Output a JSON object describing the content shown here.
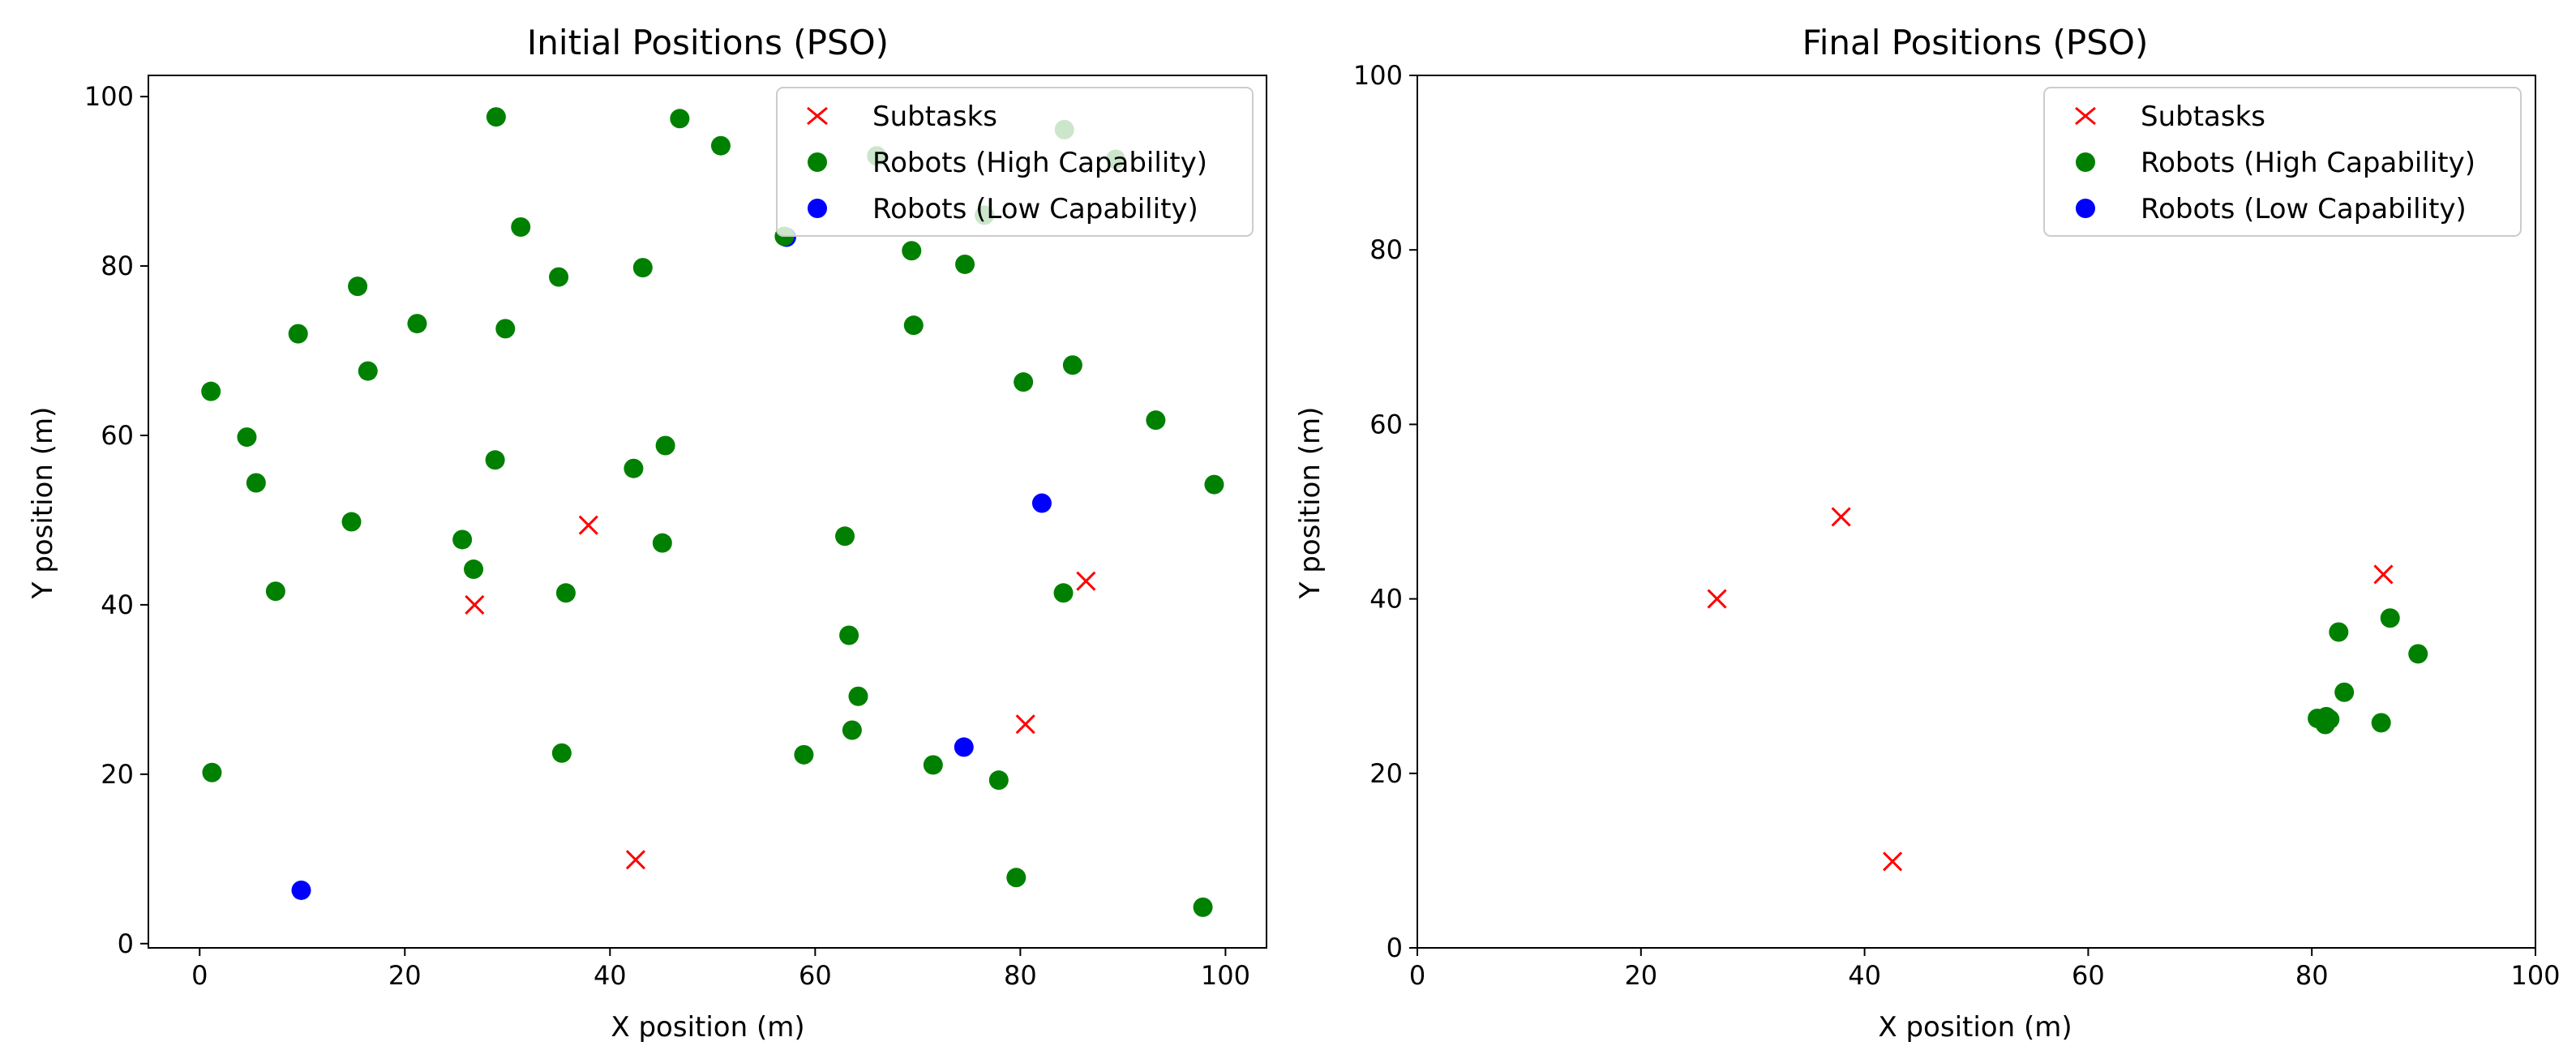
{
  "chart_data": [
    {
      "type": "scatter",
      "title": "Initial Positions (PSO)",
      "xlabel": "X position (m)",
      "ylabel": "Y position (m)",
      "xlim": [
        -5,
        104
      ],
      "ylim": [
        -0.5,
        102.5
      ],
      "xticks": [
        0,
        20,
        40,
        60,
        80,
        100
      ],
      "yticks": [
        0,
        20,
        40,
        60,
        80,
        100
      ],
      "grid": false,
      "legend_position": "top-right",
      "series": [
        {
          "name": "Subtasks",
          "marker": "x",
          "color": "#ff0000",
          "points": [
            [
              26.8,
              40.0
            ],
            [
              37.9,
              49.4
            ],
            [
              42.5,
              9.9
            ],
            [
              80.5,
              25.9
            ],
            [
              86.4,
              42.8
            ]
          ]
        },
        {
          "name": "Robots (High Capability)",
          "marker": "circle",
          "color": "#008000",
          "points": [
            [
              1.1,
              65.2
            ],
            [
              4.6,
              59.8
            ],
            [
              5.5,
              54.4
            ],
            [
              7.4,
              41.6
            ],
            [
              9.6,
              72.0
            ],
            [
              14.8,
              49.8
            ],
            [
              15.4,
              77.6
            ],
            [
              16.4,
              67.6
            ],
            [
              21.2,
              73.2
            ],
            [
              25.6,
              47.7
            ],
            [
              26.7,
              44.2
            ],
            [
              28.8,
              57.1
            ],
            [
              28.9,
              97.6
            ],
            [
              29.8,
              72.6
            ],
            [
              31.3,
              84.6
            ],
            [
              35.0,
              78.7
            ],
            [
              35.3,
              22.5
            ],
            [
              35.7,
              41.4
            ],
            [
              42.3,
              56.1
            ],
            [
              43.2,
              79.8
            ],
            [
              45.1,
              47.3
            ],
            [
              45.4,
              58.8
            ],
            [
              46.8,
              97.4
            ],
            [
              50.8,
              94.2
            ],
            [
              58.9,
              22.3
            ],
            [
              62.9,
              48.1
            ],
            [
              63.3,
              36.4
            ],
            [
              63.6,
              25.2
            ],
            [
              64.2,
              29.2
            ],
            [
              69.4,
              81.8
            ],
            [
              69.6,
              73.0
            ],
            [
              71.5,
              21.1
            ],
            [
              74.6,
              80.2
            ],
            [
              77.9,
              19.3
            ],
            [
              79.6,
              7.8
            ],
            [
              80.3,
              66.3
            ],
            [
              84.2,
              41.4
            ],
            [
              85.1,
              68.3
            ],
            [
              93.2,
              61.8
            ],
            [
              97.8,
              4.3
            ],
            [
              98.9,
              54.2
            ],
            [
              1.2,
              20.2
            ]
          ]
        },
        {
          "name": "Robots (Low Capability)",
          "marker": "circle",
          "color": "#0000ff",
          "points": [
            [
              9.9,
              6.3
            ],
            [
              57.2,
              83.4
            ],
            [
              74.5,
              23.2
            ],
            [
              82.1,
              52.0
            ]
          ]
        }
      ],
      "faded_points_behind_legend": [
        [
          66.0,
          93.0
        ],
        [
          76.5,
          86.0
        ],
        [
          84.3,
          96.1
        ],
        [
          89.3,
          92.6
        ],
        [
          57.0,
          83.5
        ]
      ]
    },
    {
      "type": "scatter",
      "title": "Final Positions (PSO)",
      "xlabel": "X position (m)",
      "ylabel": "Y position (m)",
      "xlim": [
        0,
        100
      ],
      "ylim": [
        0,
        100
      ],
      "xticks": [
        0,
        20,
        40,
        60,
        80,
        100
      ],
      "yticks": [
        0,
        20,
        40,
        60,
        80,
        100
      ],
      "grid": false,
      "legend_position": "top-right",
      "series": [
        {
          "name": "Subtasks",
          "marker": "x",
          "color": "#ff0000",
          "points": [
            [
              26.8,
              40.0
            ],
            [
              37.9,
              49.4
            ],
            [
              42.5,
              9.9
            ],
            [
              86.4,
              42.8
            ]
          ]
        },
        {
          "name": "Robots (High Capability)",
          "marker": "circle",
          "color": "#008000",
          "points": [
            [
              80.5,
              26.3
            ],
            [
              81.0,
              26.0
            ],
            [
              81.3,
              26.5
            ],
            [
              81.6,
              26.2
            ],
            [
              81.2,
              25.6
            ],
            [
              82.4,
              36.2
            ],
            [
              82.9,
              29.3
            ],
            [
              86.2,
              25.8
            ],
            [
              87.0,
              37.8
            ],
            [
              89.5,
              33.7
            ]
          ]
        },
        {
          "name": "Robots (Low Capability)",
          "marker": "circle",
          "color": "#0000ff",
          "points": []
        }
      ]
    }
  ]
}
